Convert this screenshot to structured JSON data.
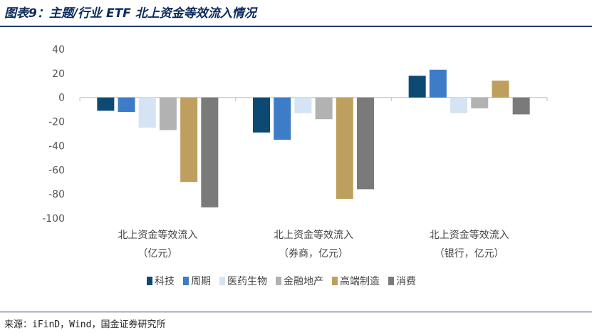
{
  "title": "图表9：主题/行业 ETF 北上资金等效流入情况",
  "source": "来源：iFinD，Wind，国金证券研究所",
  "colors": {
    "科技": "#0d4a73",
    "周期": "#3d7cc6",
    "医药生物": "#d4e4f4",
    "金融地产": "#b2b2b2",
    "高端制造": "#bf9f5e",
    "消费": "#7a7a7a"
  },
  "chart_data": {
    "type": "bar",
    "ylim": [
      -100,
      40
    ],
    "yticks": [
      40,
      20,
      0,
      -20,
      -40,
      -60,
      -80,
      -100
    ],
    "grid": false,
    "legend_position": "bottom",
    "categories": [
      [
        "北上资金等效流入",
        "（亿元）"
      ],
      [
        "北上资金等效流入",
        "（券商，亿元）"
      ],
      [
        "北上资金等效流入",
        "（银行，亿元）"
      ]
    ],
    "series": [
      {
        "name": "科技",
        "values": [
          -11,
          -29,
          18
        ]
      },
      {
        "name": "周期",
        "values": [
          -12,
          -35,
          23
        ]
      },
      {
        "name": "医药生物",
        "values": [
          -25,
          -13,
          -13
        ]
      },
      {
        "name": "金融地产",
        "values": [
          -27,
          -18,
          -9
        ]
      },
      {
        "name": "高端制造",
        "values": [
          -70,
          -84,
          14
        ]
      },
      {
        "name": "消费",
        "values": [
          -91,
          -76,
          -14
        ]
      }
    ]
  }
}
